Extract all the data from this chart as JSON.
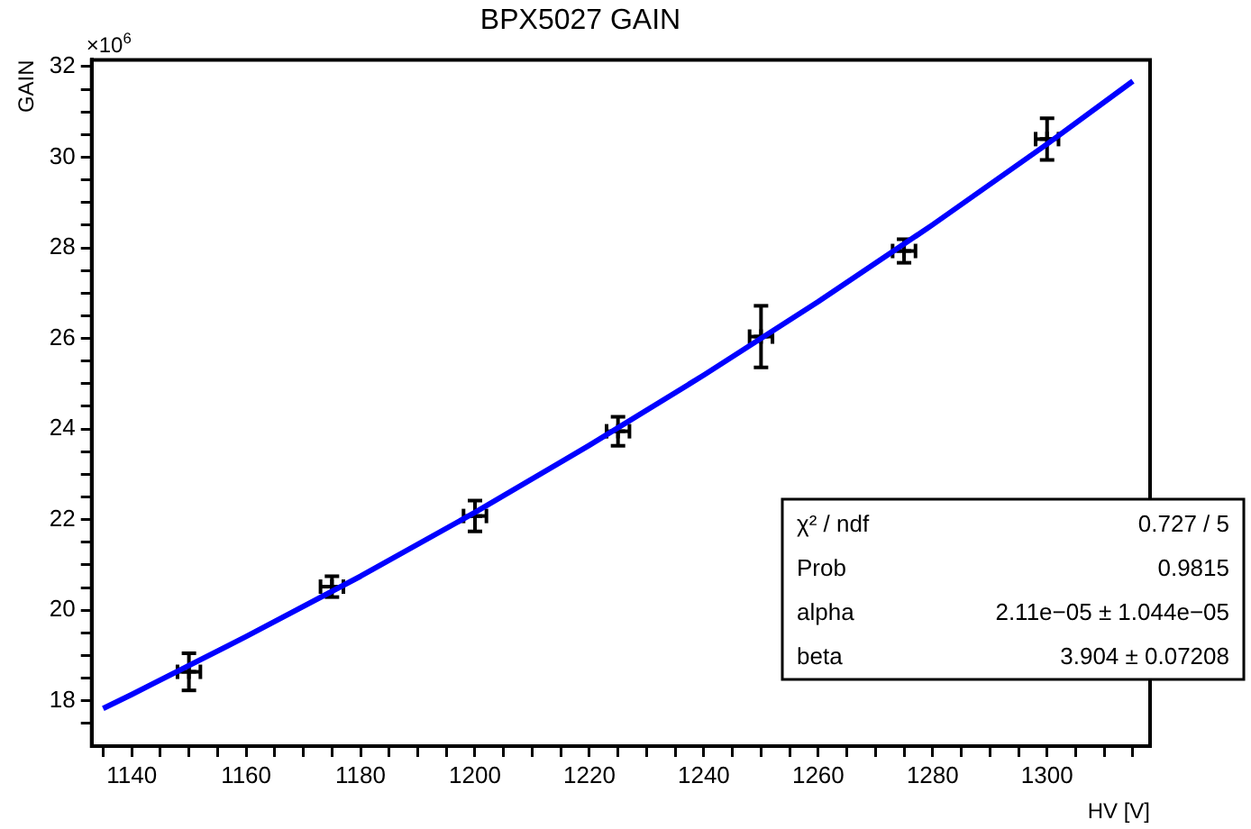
{
  "chart_data": {
    "type": "scatter",
    "title": "BPX5027 GAIN",
    "xlabel": "HV [V]",
    "ylabel": "GAIN",
    "marker": "none",
    "annotations": [
      "×10$^{6}$",
      "χ² / ndf",
      "0.727 / 5",
      "Prob",
      "0.9815",
      "alpha",
      "2.11e−05 ± 1.044e−05",
      "beta",
      "3.904 ± 0.07208"
    ],
    "xlim": [
      1133,
      1318
    ],
    "ylim": [
      17,
      32.15
    ],
    "xticks": [
      {
        "value": 1135,
        "label": null
      },
      1140,
      {
        "value": 1145,
        "label": null
      },
      {
        "value": 1150,
        "label": null
      },
      {
        "value": 1155,
        "label": null
      },
      1160,
      {
        "value": 1165,
        "label": null
      },
      {
        "value": 1170,
        "label": null
      },
      {
        "value": 1175,
        "label": null
      },
      1180,
      {
        "value": 1185,
        "label": null
      },
      {
        "value": 1190,
        "label": null
      },
      {
        "value": 1195,
        "label": null
      },
      1200,
      {
        "value": 1205,
        "label": null
      },
      {
        "value": 1210,
        "label": null
      },
      {
        "value": 1215,
        "label": null
      },
      1220,
      {
        "value": 1225,
        "label": null
      },
      {
        "value": 1230,
        "label": null
      },
      {
        "value": 1235,
        "label": null
      },
      1240,
      {
        "value": 1245,
        "label": null
      },
      {
        "value": 1250,
        "label": null
      },
      {
        "value": 1255,
        "label": null
      },
      1260,
      {
        "value": 1265,
        "label": null
      },
      {
        "value": 1270,
        "label": null
      },
      {
        "value": 1275,
        "label": null
      },
      1280,
      {
        "value": 1285,
        "label": null
      },
      {
        "value": 1290,
        "label": null
      },
      {
        "value": 1295,
        "label": null
      },
      1300,
      {
        "value": 1305,
        "label": null
      },
      {
        "value": 1310,
        "label": null
      },
      {
        "value": 1315,
        "label": null
      }
    ],
    "yticks": [
      {
        "value": 17.5,
        "label": null
      },
      18,
      {
        "value": 18.5,
        "label": null
      },
      {
        "value": 19,
        "label": null
      },
      {
        "value": 19.5,
        "label": null
      },
      20,
      {
        "value": 20.5,
        "label": null
      },
      {
        "value": 21,
        "label": null
      },
      {
        "value": 21.5,
        "label": null
      },
      22,
      {
        "value": 22.5,
        "label": null
      },
      {
        "value": 23,
        "label": null
      },
      {
        "value": 23.5,
        "label": null
      },
      24,
      {
        "value": 24.5,
        "label": null
      },
      {
        "value": 25,
        "label": null
      },
      {
        "value": 25.5,
        "label": null
      },
      26,
      {
        "value": 26.5,
        "label": null
      },
      {
        "value": 27,
        "label": null
      },
      {
        "value": 27.5,
        "label": null
      },
      28,
      {
        "value": 28.5,
        "label": null
      },
      {
        "value": 29,
        "label": null
      },
      {
        "value": 29.5,
        "label": null
      },
      30,
      {
        "value": 30.5,
        "label": null
      },
      {
        "value": 31,
        "label": null
      },
      {
        "value": 31.5,
        "label": null
      },
      32
    ],
    "series": [
      {
        "type": "line",
        "color": "#0000ff",
        "x": [
          1135,
          1140,
          1160,
          1180,
          1200,
          1220,
          1240,
          1260,
          1280,
          1300,
          1315
        ],
        "values": [
          17.83,
          18.14,
          19.42,
          20.75,
          22.16,
          23.64,
          25.19,
          26.81,
          28.51,
          30.29,
          31.68
        ]
      },
      {
        "marker": "cross",
        "color": "#000000",
        "x": [
          1150,
          1175,
          1200,
          1225,
          1250,
          1275,
          1300
        ],
        "values": [
          18.64,
          20.52,
          22.08,
          23.95,
          26.04,
          27.93,
          30.4
        ],
        "errors": [
          0.41,
          0.23,
          0.34,
          0.32,
          0.68,
          0.26,
          0.46
        ],
        "xerrors": [
          2,
          2,
          2,
          2,
          2,
          2,
          2
        ]
      }
    ]
  }
}
